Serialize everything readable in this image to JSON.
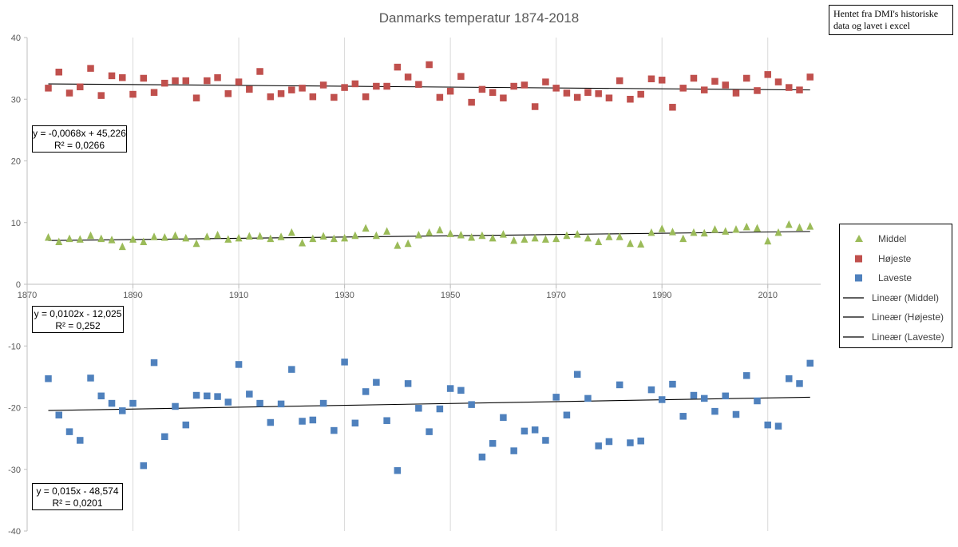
{
  "chart_data": {
    "type": "scatter",
    "title": "Danmarks temperatur 1874-2018",
    "xlim": [
      1870,
      2020
    ],
    "ylim": [
      -40,
      40
    ],
    "x_ticks": [
      1870,
      1890,
      1910,
      1930,
      1950,
      1970,
      1990,
      2010
    ],
    "y_ticks": [
      -40,
      -30,
      -20,
      -10,
      0,
      10,
      20,
      30,
      40
    ],
    "x_tick_labels": [
      "1870",
      "1890",
      "1910",
      "1930",
      "1950",
      "1970",
      "1990",
      "2010"
    ],
    "y_tick_labels": [
      "-40",
      "-30",
      "-20",
      "-10",
      "0",
      "10",
      "20",
      "30",
      "40"
    ],
    "gridlines": "vertical",
    "legend_position": "right",
    "series": [
      {
        "name": "Middel",
        "marker": "triangle",
        "color": "#9bbb59",
        "x": [
          1874,
          1876,
          1878,
          1880,
          1882,
          1884,
          1886,
          1888,
          1890,
          1892,
          1894,
          1896,
          1898,
          1900,
          1902,
          1904,
          1906,
          1908,
          1910,
          1912,
          1914,
          1916,
          1918,
          1920,
          1922,
          1924,
          1926,
          1928,
          1930,
          1932,
          1934,
          1936,
          1938,
          1940,
          1942,
          1944,
          1946,
          1948,
          1950,
          1952,
          1954,
          1956,
          1958,
          1960,
          1962,
          1964,
          1966,
          1968,
          1970,
          1972,
          1974,
          1976,
          1978,
          1980,
          1982,
          1984,
          1986,
          1988,
          1990,
          1992,
          1994,
          1996,
          1998,
          2000,
          2002,
          2004,
          2006,
          2008,
          2010,
          2012,
          2014,
          2016,
          2018
        ],
        "values": [
          7.6,
          6.9,
          7.4,
          7.3,
          7.9,
          7.4,
          7.2,
          6.1,
          7.3,
          6.9,
          7.7,
          7.6,
          7.9,
          7.5,
          6.6,
          7.7,
          8.0,
          7.3,
          7.5,
          7.8,
          7.8,
          7.4,
          7.7,
          8.4,
          6.7,
          7.4,
          7.8,
          7.4,
          7.5,
          7.9,
          9.1,
          7.9,
          8.6,
          6.3,
          6.6,
          8.0,
          8.4,
          8.8,
          8.2,
          8.0,
          7.6,
          7.9,
          7.5,
          8.1,
          7.1,
          7.3,
          7.5,
          7.3,
          7.4,
          7.9,
          8.1,
          7.5,
          6.9,
          7.7,
          7.7,
          6.6,
          6.5,
          8.4,
          9.0,
          8.5,
          7.4,
          8.4,
          8.3,
          8.9,
          8.6,
          8.9,
          9.3,
          9.1,
          7.0,
          8.4,
          9.7,
          9.2,
          9.4
        ],
        "trendline": {
          "name": "Lineær (Middel)",
          "slope": 0.0102,
          "intercept": -12.025
        }
      },
      {
        "name": "Højeste",
        "marker": "square",
        "color": "#c0504d",
        "x": [
          1874,
          1876,
          1878,
          1880,
          1882,
          1884,
          1886,
          1888,
          1890,
          1892,
          1894,
          1896,
          1898,
          1900,
          1902,
          1904,
          1906,
          1908,
          1910,
          1912,
          1914,
          1916,
          1918,
          1920,
          1922,
          1924,
          1926,
          1928,
          1930,
          1932,
          1934,
          1936,
          1938,
          1940,
          1942,
          1944,
          1946,
          1948,
          1950,
          1952,
          1954,
          1956,
          1958,
          1960,
          1962,
          1964,
          1966,
          1968,
          1970,
          1972,
          1974,
          1976,
          1978,
          1980,
          1982,
          1984,
          1986,
          1988,
          1990,
          1992,
          1994,
          1996,
          1998,
          2000,
          2002,
          2004,
          2006,
          2008,
          2010,
          2012,
          2014,
          2016,
          2018
        ],
        "values": [
          31.8,
          34.4,
          31.0,
          32.0,
          35.0,
          30.6,
          33.8,
          33.5,
          30.8,
          33.4,
          31.1,
          32.6,
          33.0,
          33.0,
          30.2,
          33.0,
          33.5,
          30.9,
          32.8,
          31.6,
          34.5,
          30.4,
          30.9,
          31.5,
          31.8,
          30.4,
          32.3,
          30.3,
          31.9,
          32.5,
          30.4,
          32.1,
          32.1,
          35.2,
          33.6,
          32.4,
          35.6,
          30.3,
          31.3,
          33.7,
          29.5,
          31.6,
          31.1,
          30.2,
          32.1,
          32.3,
          28.8,
          32.8,
          31.8,
          31.0,
          30.3,
          31.1,
          30.9,
          30.2,
          33.0,
          30.0,
          30.8,
          33.3,
          33.1,
          28.7,
          31.8,
          33.4,
          31.5,
          32.9,
          32.3,
          31.0,
          33.4,
          31.4,
          34.0,
          32.8,
          31.9,
          31.5,
          33.6
        ],
        "trendline": {
          "name": "Lineær (Højeste)",
          "slope": -0.0068,
          "intercept": 45.226
        }
      },
      {
        "name": "Laveste",
        "marker": "square",
        "color": "#4f81bd",
        "x": [
          1874,
          1876,
          1878,
          1880,
          1882,
          1884,
          1886,
          1888,
          1890,
          1892,
          1894,
          1896,
          1898,
          1900,
          1902,
          1904,
          1906,
          1908,
          1910,
          1912,
          1914,
          1916,
          1918,
          1920,
          1922,
          1924,
          1926,
          1928,
          1930,
          1932,
          1934,
          1936,
          1938,
          1940,
          1942,
          1944,
          1946,
          1948,
          1950,
          1952,
          1954,
          1956,
          1958,
          1960,
          1962,
          1964,
          1966,
          1968,
          1970,
          1972,
          1974,
          1976,
          1978,
          1980,
          1982,
          1984,
          1986,
          1988,
          1990,
          1992,
          1994,
          1996,
          1998,
          2000,
          2002,
          2004,
          2006,
          2008,
          2010,
          2012,
          2014,
          2016,
          2018
        ],
        "values": [
          -15.3,
          -21.2,
          -23.9,
          -25.3,
          -15.2,
          -18.1,
          -19.3,
          -20.5,
          -19.3,
          -29.4,
          -12.7,
          -24.7,
          -19.8,
          -22.8,
          -18.0,
          -18.1,
          -18.2,
          -19.1,
          -13.0,
          -17.8,
          -19.3,
          -22.4,
          -19.4,
          -13.8,
          -22.2,
          -22.0,
          -19.3,
          -23.7,
          -12.6,
          -22.5,
          -17.4,
          -15.9,
          -22.1,
          -30.2,
          -16.1,
          -20.1,
          -23.9,
          -20.2,
          -16.9,
          -17.2,
          -19.5,
          -28.0,
          -25.8,
          -21.6,
          -27.0,
          -23.8,
          -23.6,
          -25.3,
          -18.3,
          -21.2,
          -14.6,
          -18.5,
          -26.2,
          -25.5,
          -16.3,
          -25.7,
          -25.4,
          -17.1,
          -18.7,
          -16.2,
          -21.4,
          -18.0,
          -18.5,
          -20.6,
          -18.1,
          -21.1,
          -14.8,
          -18.9,
          -22.8,
          -23.0,
          -15.3,
          -16.1,
          -12.8
        ],
        "trendline": {
          "name": "Lineær (Laveste)",
          "slope": 0.015,
          "intercept": -48.574
        }
      }
    ],
    "equation_boxes": [
      {
        "equation": "y = -0,0068x + 45,226",
        "r2": "R² = 0,0266"
      },
      {
        "equation": "y = 0,0102x - 12,025",
        "r2": "R² = 0,252"
      },
      {
        "equation": "y = 0,015x - 48,574",
        "r2": "R² = 0,0201"
      }
    ],
    "legend": [
      {
        "label": "Middel",
        "kind": "triangle",
        "color": "#9bbb59"
      },
      {
        "label": "Højeste",
        "kind": "square",
        "color": "#c0504d"
      },
      {
        "label": "Laveste",
        "kind": "square",
        "color": "#4f81bd"
      },
      {
        "label": "Lineær (Middel)",
        "kind": "line",
        "color": "#000000"
      },
      {
        "label": "Lineær (Højeste)",
        "kind": "line",
        "color": "#000000"
      },
      {
        "label": "Lineær (Laveste)",
        "kind": "line",
        "color": "#000000"
      }
    ]
  },
  "source_note": {
    "line1": "Hentet fra DMI's historiske",
    "line2": "data og lavet i excel"
  },
  "colors": {
    "gridline": "#d9d9d9",
    "axis": "#bfbfbf",
    "tick_text": "#595959",
    "title_text": "#595959"
  }
}
